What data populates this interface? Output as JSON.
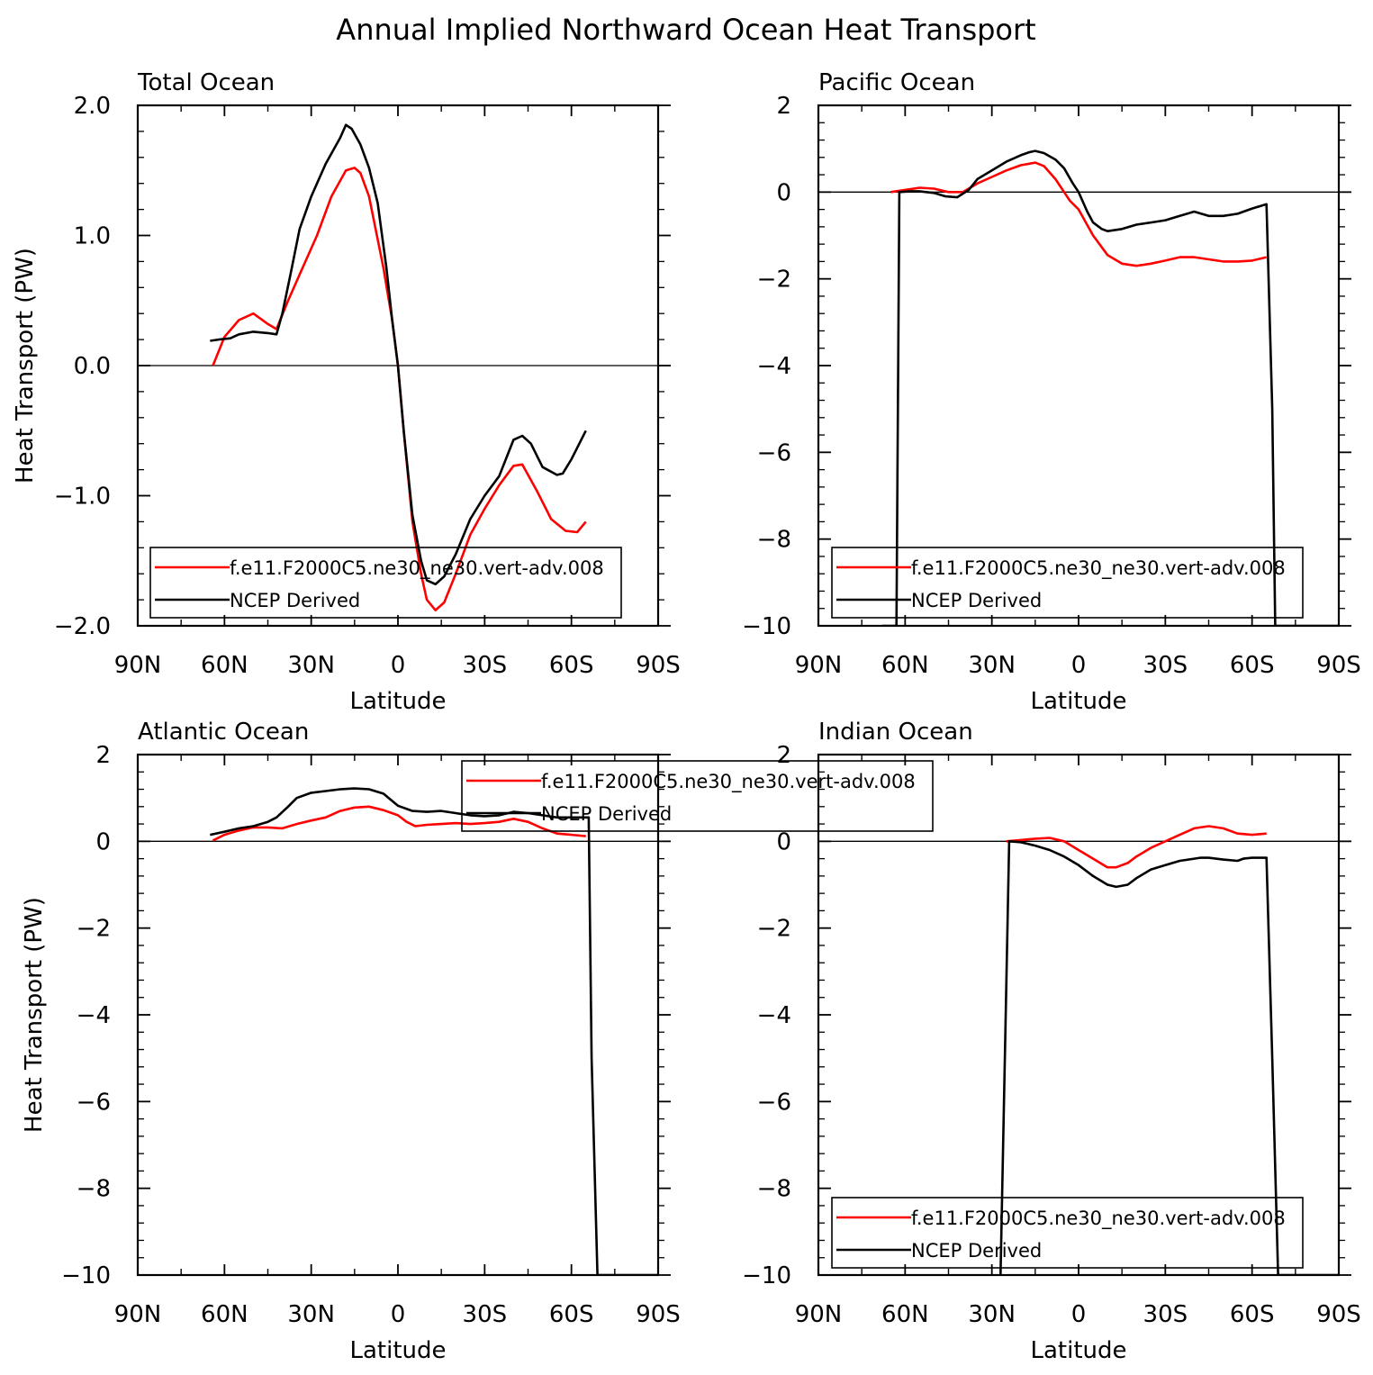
{
  "title": "Annual Implied Northward Ocean Heat Transport",
  "colors": {
    "model": "#ff0000",
    "obs": "#000000",
    "axis": "#000000"
  },
  "legend_labels": [
    "f.e11.F2000C5.ne30_ne30.vert-adv.008",
    "NCEP Derived"
  ],
  "chart_data": [
    {
      "type": "line",
      "title": "Total Ocean",
      "xlabel": "Latitude",
      "ylabel": "Heat Transport (PW)",
      "xlim": [
        90,
        -90
      ],
      "ylim": [
        -2.0,
        2.0
      ],
      "xticks": [
        90,
        60,
        30,
        0,
        -30,
        -60,
        -90
      ],
      "xticklabels": [
        "90N",
        "60N",
        "30N",
        "0",
        "30S",
        "60S",
        "90S"
      ],
      "yticks": [
        -2.0,
        -1.0,
        0.0,
        1.0,
        2.0
      ],
      "yticklabels": [
        "−2.0",
        "−1.0",
        "0.0",
        "1.0",
        "2.0"
      ],
      "legend": "bottom-left",
      "series": [
        {
          "name": "f.e11.F2000C5.ne30_ne30.vert-adv.008",
          "x": [
            64,
            60,
            55,
            50,
            45,
            42,
            38,
            33,
            28,
            23,
            18,
            15,
            13,
            10,
            5,
            2,
            0,
            -2,
            -5,
            -8,
            -10,
            -13,
            -16,
            -20,
            -25,
            -30,
            -35,
            -40,
            -43,
            -48,
            -53,
            -58,
            -62,
            -65
          ],
          "y": [
            0.0,
            0.22,
            0.35,
            0.4,
            0.32,
            0.28,
            0.5,
            0.75,
            1.0,
            1.3,
            1.5,
            1.52,
            1.48,
            1.3,
            0.75,
            0.35,
            0.0,
            -0.5,
            -1.2,
            -1.6,
            -1.8,
            -1.88,
            -1.82,
            -1.6,
            -1.3,
            -1.1,
            -0.92,
            -0.77,
            -0.76,
            -0.96,
            -1.18,
            -1.27,
            -1.28,
            -1.2
          ]
        },
        {
          "name": "NCEP Derived",
          "x": [
            65,
            62,
            58,
            55,
            50,
            45,
            42,
            40,
            37,
            34,
            30,
            25,
            20,
            18,
            16,
            13,
            10,
            7,
            4,
            2,
            0,
            -2,
            -5,
            -8,
            -10,
            -13,
            -16,
            -20,
            -25,
            -30,
            -35,
            -40,
            -43,
            -46,
            -50,
            -55,
            -57,
            -60,
            -65
          ],
          "y": [
            0.19,
            0.2,
            0.21,
            0.24,
            0.26,
            0.25,
            0.24,
            0.4,
            0.72,
            1.05,
            1.3,
            1.55,
            1.75,
            1.85,
            1.82,
            1.7,
            1.52,
            1.25,
            0.75,
            0.35,
            0.0,
            -0.5,
            -1.15,
            -1.5,
            -1.65,
            -1.68,
            -1.62,
            -1.45,
            -1.18,
            -1.0,
            -0.85,
            -0.57,
            -0.54,
            -0.6,
            -0.78,
            -0.84,
            -0.83,
            -0.72,
            -0.5
          ]
        }
      ]
    },
    {
      "type": "line",
      "title": "Pacific Ocean",
      "xlabel": "Latitude",
      "ylabel": "",
      "xlim": [
        90,
        -90
      ],
      "ylim": [
        -10,
        2
      ],
      "xticks": [
        90,
        60,
        30,
        0,
        -30,
        -60,
        -90
      ],
      "xticklabels": [
        "90N",
        "60N",
        "30N",
        "0",
        "30S",
        "60S",
        "90S"
      ],
      "yticks": [
        -10,
        -8,
        -6,
        -4,
        -2,
        0,
        2
      ],
      "yticklabels": [
        "−10",
        "−8",
        "−6",
        "−4",
        "−2",
        "0",
        "2"
      ],
      "legend": "bottom-left",
      "series": [
        {
          "name": "f.e11.F2000C5.ne30_ne30.vert-adv.008",
          "x": [
            65,
            60,
            55,
            50,
            45,
            40,
            35,
            30,
            25,
            20,
            15,
            12,
            8,
            3,
            0,
            -5,
            -10,
            -15,
            -20,
            -25,
            -30,
            -35,
            -40,
            -45,
            -50,
            -55,
            -60,
            -65
          ],
          "y": [
            0.0,
            0.05,
            0.1,
            0.08,
            0.0,
            0.0,
            0.2,
            0.35,
            0.5,
            0.62,
            0.68,
            0.6,
            0.3,
            -0.2,
            -0.4,
            -1.0,
            -1.45,
            -1.65,
            -1.7,
            -1.65,
            -1.58,
            -1.5,
            -1.5,
            -1.55,
            -1.6,
            -1.6,
            -1.58,
            -1.5
          ]
        },
        {
          "name": "NCEP Derived",
          "x": [
            68,
            63,
            62,
            58,
            55,
            50,
            46,
            42,
            38,
            35,
            30,
            25,
            20,
            17,
            15,
            12,
            8,
            5,
            2,
            0,
            -3,
            -5,
            -8,
            -10,
            -15,
            -20,
            -25,
            -30,
            -35,
            -40,
            -45,
            -50,
            -55,
            -60,
            -65,
            -67,
            -68,
            -70,
            -90
          ],
          "y": [
            -10,
            -10,
            0.0,
            0.02,
            0.02,
            -0.02,
            -0.1,
            -0.12,
            0.05,
            0.3,
            0.5,
            0.7,
            0.85,
            0.92,
            0.95,
            0.9,
            0.75,
            0.55,
            0.2,
            0.0,
            -0.45,
            -0.7,
            -0.85,
            -0.9,
            -0.85,
            -0.75,
            -0.7,
            -0.65,
            -0.55,
            -0.45,
            -0.55,
            -0.55,
            -0.5,
            -0.38,
            -0.28,
            -5.0,
            -10,
            -10,
            -10
          ]
        }
      ]
    },
    {
      "type": "line",
      "title": "Atlantic Ocean",
      "xlabel": "Latitude",
      "ylabel": "Heat Transport (PW)",
      "xlim": [
        90,
        -90
      ],
      "ylim": [
        -10,
        2
      ],
      "xticks": [
        90,
        60,
        30,
        0,
        -30,
        -60,
        -90
      ],
      "xticklabels": [
        "90N",
        "60N",
        "30N",
        "0",
        "30S",
        "60S",
        "90S"
      ],
      "yticks": [
        -10,
        -8,
        -6,
        -4,
        -2,
        0,
        2
      ],
      "yticklabels": [
        "−10",
        "−8",
        "−6",
        "−4",
        "−2",
        "0",
        "2"
      ],
      "legend": "top-right",
      "series": [
        {
          "name": "f.e11.F2000C5.ne30_ne30.vert-adv.008",
          "x": [
            64,
            60,
            55,
            50,
            45,
            40,
            35,
            30,
            25,
            20,
            15,
            10,
            5,
            0,
            -3,
            -6,
            -10,
            -15,
            -20,
            -25,
            -30,
            -35,
            -40,
            -45,
            -50,
            -55,
            -60,
            -65
          ],
          "y": [
            0.02,
            0.15,
            0.25,
            0.32,
            0.32,
            0.3,
            0.4,
            0.48,
            0.55,
            0.7,
            0.78,
            0.8,
            0.72,
            0.6,
            0.45,
            0.35,
            0.38,
            0.4,
            0.42,
            0.4,
            0.42,
            0.45,
            0.52,
            0.45,
            0.3,
            0.18,
            0.15,
            0.12
          ]
        },
        {
          "name": "NCEP Derived",
          "x": [
            65,
            60,
            55,
            50,
            45,
            42,
            38,
            35,
            30,
            25,
            20,
            15,
            10,
            5,
            0,
            -5,
            -10,
            -15,
            -20,
            -25,
            -30,
            -35,
            -40,
            -45,
            -50,
            -55,
            -60,
            -65,
            -66,
            -67,
            -69,
            -90
          ],
          "y": [
            0.15,
            0.22,
            0.3,
            0.35,
            0.45,
            0.55,
            0.8,
            1.0,
            1.12,
            1.16,
            1.2,
            1.22,
            1.2,
            1.1,
            0.82,
            0.7,
            0.68,
            0.7,
            0.65,
            0.6,
            0.58,
            0.6,
            0.68,
            0.65,
            0.6,
            0.55,
            0.55,
            0.55,
            0.55,
            -5.0,
            -10,
            -10
          ]
        }
      ]
    },
    {
      "type": "line",
      "title": "Indian Ocean",
      "xlabel": "Latitude",
      "ylabel": "",
      "xlim": [
        90,
        -90
      ],
      "ylim": [
        -10,
        2
      ],
      "xticks": [
        90,
        60,
        30,
        0,
        -30,
        -60,
        -90
      ],
      "xticklabels": [
        "90N",
        "60N",
        "30N",
        "0",
        "30S",
        "60S",
        "90S"
      ],
      "yticks": [
        -10,
        -8,
        -6,
        -4,
        -2,
        0,
        2
      ],
      "yticklabels": [
        "−10",
        "−8",
        "−6",
        "−4",
        "−2",
        "0",
        "2"
      ],
      "legend": "bottom-left",
      "series": [
        {
          "name": "f.e11.F2000C5.ne30_ne30.vert-adv.008",
          "x": [
            25,
            20,
            15,
            10,
            5,
            0,
            -5,
            -10,
            -13,
            -17,
            -20,
            -25,
            -30,
            -35,
            -40,
            -45,
            -50,
            -55,
            -60,
            -65
          ],
          "y": [
            0.0,
            0.03,
            0.06,
            0.08,
            0.0,
            -0.2,
            -0.4,
            -0.6,
            -0.6,
            -0.5,
            -0.35,
            -0.15,
            0.0,
            0.15,
            0.3,
            0.35,
            0.3,
            0.18,
            0.15,
            0.18
          ]
        },
        {
          "name": "NCEP Derived",
          "x": [
            27,
            24,
            20,
            15,
            10,
            5,
            0,
            -5,
            -10,
            -13,
            -17,
            -20,
            -25,
            -30,
            -35,
            -40,
            -42,
            -45,
            -50,
            -55,
            -57,
            -60,
            -65,
            -67,
            -69,
            -90
          ],
          "y": [
            -10,
            0.0,
            -0.02,
            -0.1,
            -0.2,
            -0.35,
            -0.55,
            -0.8,
            -1.0,
            -1.05,
            -1.0,
            -0.85,
            -0.65,
            -0.55,
            -0.45,
            -0.4,
            -0.38,
            -0.38,
            -0.42,
            -0.45,
            -0.4,
            -0.38,
            -0.38,
            -5.0,
            -10,
            -10
          ]
        }
      ]
    }
  ]
}
